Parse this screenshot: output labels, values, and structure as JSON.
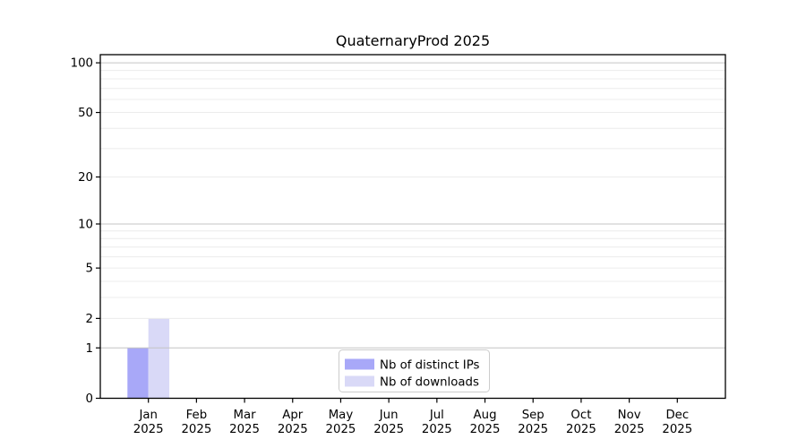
{
  "chart_data": {
    "type": "bar",
    "title": "QuaternaryProd 2025",
    "categories_month": [
      "Jan",
      "Feb",
      "Mar",
      "Apr",
      "May",
      "Jun",
      "Jul",
      "Aug",
      "Sep",
      "Oct",
      "Nov",
      "Dec"
    ],
    "categories_year": "2025",
    "series": [
      {
        "name": "Nb of distinct IPs",
        "key": "distinct-ips",
        "color": "#a8a8f8",
        "values": [
          1,
          0,
          0,
          0,
          0,
          0,
          0,
          0,
          0,
          0,
          0,
          0
        ]
      },
      {
        "name": "Nb of downloads",
        "key": "downloads",
        "color": "#d9d9f7",
        "values": [
          2,
          0,
          0,
          0,
          0,
          0,
          0,
          0,
          0,
          0,
          0,
          0
        ]
      }
    ],
    "y_axis": {
      "scale": "log1p",
      "tick_values": [
        0,
        1,
        2,
        5,
        10,
        20,
        50,
        100
      ],
      "max": 112,
      "major_grid_values": [
        1,
        10,
        100
      ],
      "minor_grid_values": [
        2,
        3,
        4,
        5,
        6,
        7,
        8,
        9,
        20,
        30,
        40,
        50,
        60,
        70,
        80,
        90
      ]
    },
    "legend": {
      "position": "lower center"
    },
    "colors": {
      "major_grid": "#c4c4c4",
      "minor_grid": "#ececec",
      "spine": "#000000",
      "text": "#000000",
      "legend_border": "#cccccc",
      "legend_background": "#ffffff"
    }
  }
}
